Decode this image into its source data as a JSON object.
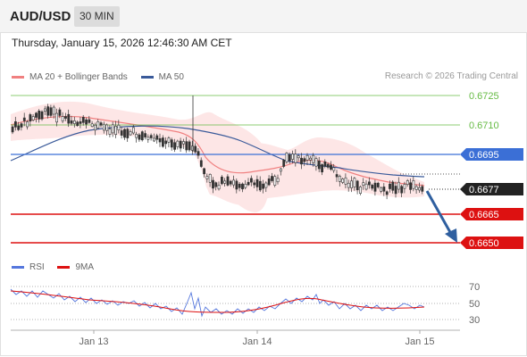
{
  "header": {
    "symbol": "AUD/USD",
    "timeframe": "30 MIN",
    "datetime": "Thursday, January 15, 2026 12:46:30 AM CET"
  },
  "legend": {
    "bollinger_label": "MA 20 + Bollinger Bands",
    "ma50_label": "MA 50",
    "credit": "Research © 2026 Trading Central"
  },
  "levels": [
    {
      "label": "0.6725",
      "kind": "resistance-green"
    },
    {
      "label": "0.6710",
      "kind": "resistance-green"
    },
    {
      "label": "0.6695",
      "kind": "pivot-blue"
    },
    {
      "label": "0.6677",
      "kind": "current-price"
    },
    {
      "label": "0.6665",
      "kind": "target-red"
    },
    {
      "label": "0.6650",
      "kind": "target-red"
    }
  ],
  "rsi": {
    "legend_rsi": "RSI",
    "legend_ma": "9MA",
    "ticks": [
      "70",
      "50",
      "30"
    ]
  },
  "xaxis": {
    "ticks": [
      "Jan 13",
      "Jan 14",
      "Jan 15"
    ]
  },
  "colors": {
    "bollinger": "#f08080",
    "band_fill": "#fde3e3",
    "ma50": "#3a5a9a",
    "green_level": "#66bb44",
    "blue_level": "#3b6fd6",
    "red_level": "#dd1111",
    "arrow": "#2f5f9f",
    "rsi": "#5577dd",
    "rsi_ma": "#dd1111",
    "candle": "#333333"
  }
}
